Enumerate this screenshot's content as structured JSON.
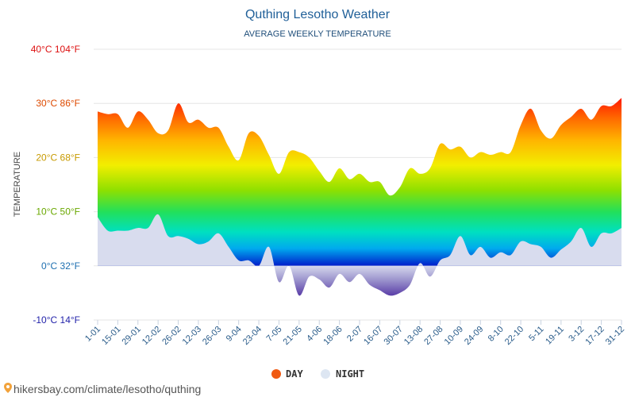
{
  "chart_data": {
    "type": "area",
    "title": "Quthing Lesotho Weather",
    "subtitle": "AVERAGE WEEKLY TEMPERATURE",
    "ylabel": "TEMPERATURE",
    "ylim": [
      -10,
      40
    ],
    "yticks": [
      {
        "value": 40,
        "label": "40°C 104°F",
        "color": "#dd1111"
      },
      {
        "value": 30,
        "label": "30°C 86°F",
        "color": "#dd4a00"
      },
      {
        "value": 20,
        "label": "20°C 68°F",
        "color": "#c79a00"
      },
      {
        "value": 10,
        "label": "10°C 50°F",
        "color": "#6aa800"
      },
      {
        "value": 0,
        "label": "0°C 32°F",
        "color": "#1e6fb0"
      },
      {
        "value": -10,
        "label": "-10°C 14°F",
        "color": "#2222aa"
      }
    ],
    "xticks": [
      "1-01",
      "15-01",
      "29-01",
      "12-02",
      "26-02",
      "12-03",
      "26-03",
      "9-04",
      "23-04",
      "7-05",
      "21-05",
      "4-06",
      "18-06",
      "2-07",
      "16-07",
      "30-07",
      "13-08",
      "27-08",
      "10-09",
      "24-09",
      "8-10",
      "22-10",
      "5-11",
      "19-11",
      "3-12",
      "17-12",
      "31-12"
    ],
    "series": [
      {
        "name": "DAY",
        "color": "#f05a12",
        "values": [
          28.5,
          28,
          28,
          25.5,
          28.5,
          27,
          24.5,
          25,
          30,
          26.5,
          27,
          25.5,
          25.5,
          22,
          19.5,
          24.5,
          24,
          20.5,
          17,
          21,
          21,
          20,
          17.5,
          15.5,
          18,
          16,
          17,
          15.5,
          15.5,
          13,
          14.5,
          18,
          17,
          18,
          22.5,
          21.5,
          22,
          20,
          21,
          20.5,
          21,
          21,
          26,
          29,
          25,
          23.5,
          26,
          27.5,
          29,
          27,
          29.5,
          29.5,
          31
        ]
      },
      {
        "name": "NIGHT",
        "color": "#dde6f2",
        "values": [
          9,
          6.5,
          6.5,
          6.5,
          7,
          7,
          9.5,
          5.5,
          5.5,
          5,
          4,
          4.5,
          6,
          3.5,
          1,
          1,
          0,
          3.5,
          -3,
          0,
          -5.5,
          -2,
          -2.5,
          -4,
          -1.5,
          -3,
          -1.5,
          -3.5,
          -4.5,
          -5.5,
          -5,
          -3.5,
          0.5,
          -2,
          1,
          2,
          5.5,
          2,
          3.5,
          1.5,
          2.5,
          2,
          4.5,
          4,
          3.5,
          1.5,
          3,
          4.5,
          7,
          3.5,
          6,
          6,
          7
        ]
      }
    ],
    "legend": "bottom-center",
    "grid": true
  },
  "footer": {
    "credit": "hikersbay.com/climate/lesotho/quthing",
    "pin_icon": "map-pin-icon"
  }
}
